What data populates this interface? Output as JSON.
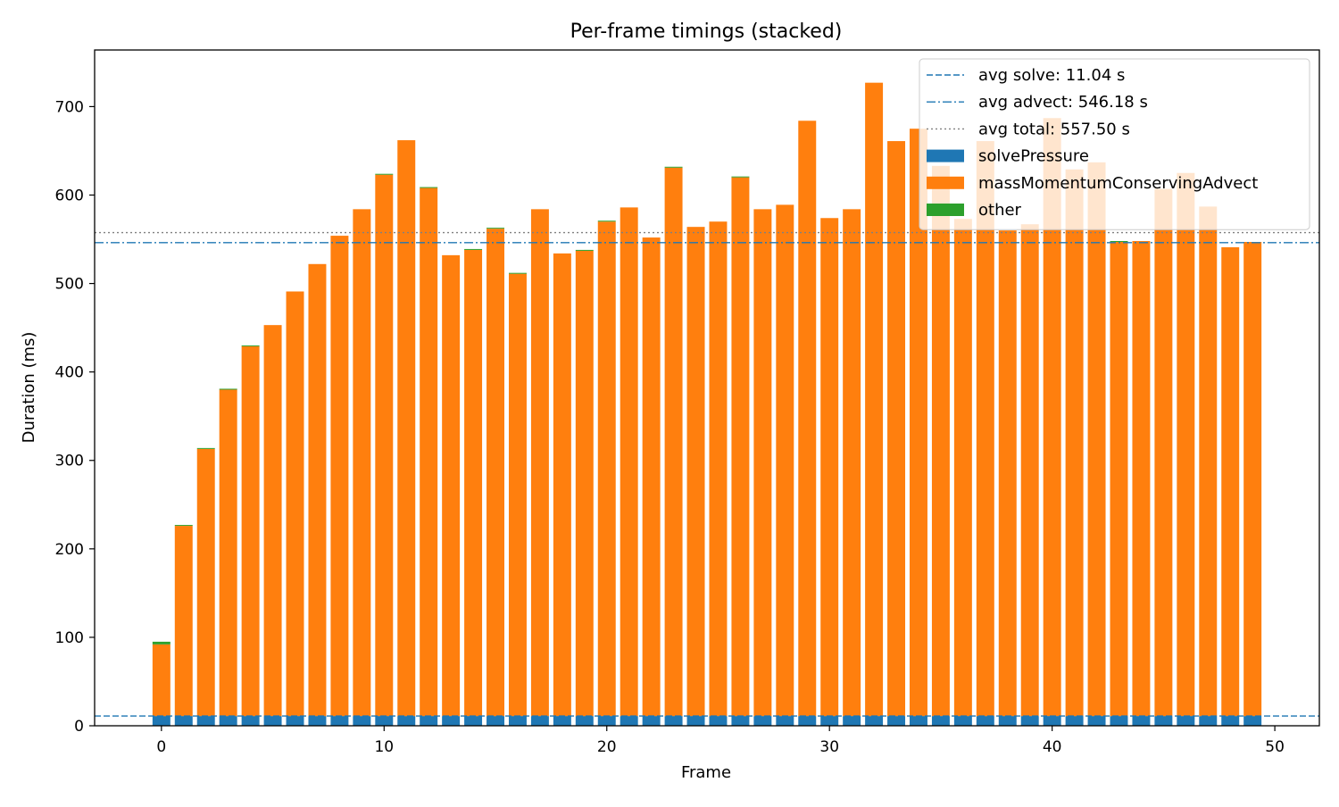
{
  "chart_data": {
    "type": "bar",
    "stacked": true,
    "title": "Per-frame timings (stacked)",
    "xlabel": "Frame",
    "ylabel": "Duration (ms)",
    "xlim": [
      -3,
      52
    ],
    "ylim": [
      0,
      764
    ],
    "xticks": [
      0,
      10,
      20,
      30,
      40,
      50
    ],
    "yticks": [
      0,
      100,
      200,
      300,
      400,
      500,
      600,
      700
    ],
    "grid": false,
    "legend_position": "top-right",
    "x": [
      0,
      1,
      2,
      3,
      4,
      5,
      6,
      7,
      8,
      9,
      10,
      11,
      12,
      13,
      14,
      15,
      16,
      17,
      18,
      19,
      20,
      21,
      22,
      23,
      24,
      25,
      26,
      27,
      28,
      29,
      30,
      31,
      32,
      33,
      34,
      35,
      36,
      37,
      38,
      39,
      40,
      41,
      42,
      43,
      44,
      45,
      46,
      47,
      48,
      49
    ],
    "series": [
      {
        "name": "solvePressure",
        "color": "#1f77b4",
        "values": [
          11,
          11,
          11,
          11,
          11,
          11,
          11,
          11,
          11,
          11,
          11,
          11,
          11,
          11,
          11,
          11,
          11,
          11,
          11,
          11,
          11,
          11,
          11,
          11,
          11,
          11,
          11,
          11,
          11,
          11,
          11,
          11,
          11,
          11,
          11,
          11,
          11,
          11,
          11,
          11,
          11,
          11,
          11,
          11,
          11,
          11,
          11,
          11,
          11,
          11
        ]
      },
      {
        "name": "massMomentumConservingAdvect",
        "color": "#ff7f0e",
        "values": [
          81,
          215,
          302,
          369,
          418,
          442,
          480,
          511,
          543,
          573,
          612,
          651,
          597,
          521,
          527,
          551,
          500,
          573,
          523,
          526,
          559,
          575,
          541,
          620,
          553,
          559,
          609,
          573,
          578,
          673,
          563,
          573,
          716,
          650,
          664,
          622,
          562,
          650,
          549,
          556,
          676,
          618,
          626,
          536,
          537,
          596,
          614,
          576,
          530,
          536
        ]
      },
      {
        "name": "other",
        "color": "#2ca02c",
        "values": [
          3,
          1,
          1,
          1,
          1,
          0,
          0,
          0,
          0,
          0,
          1,
          0,
          1,
          0,
          1,
          1,
          1,
          0,
          0,
          1,
          1,
          0,
          0,
          1,
          0,
          0,
          1,
          0,
          0,
          0,
          0,
          0,
          0,
          0,
          0,
          0,
          0,
          0,
          0,
          0,
          0,
          0,
          0,
          1,
          0,
          0,
          0,
          0,
          0,
          0
        ]
      }
    ],
    "reference_lines": [
      {
        "label": "avg solve: 11.04 s",
        "value": 11.04,
        "style": "dashed",
        "color": "#1f77b4"
      },
      {
        "label": "avg advect: 546.18 s",
        "value": 546.18,
        "style": "dashdot",
        "color": "#1f77b4"
      },
      {
        "label": "avg total: 557.50 s",
        "value": 557.5,
        "style": "dotted",
        "color": "#808080"
      }
    ]
  }
}
